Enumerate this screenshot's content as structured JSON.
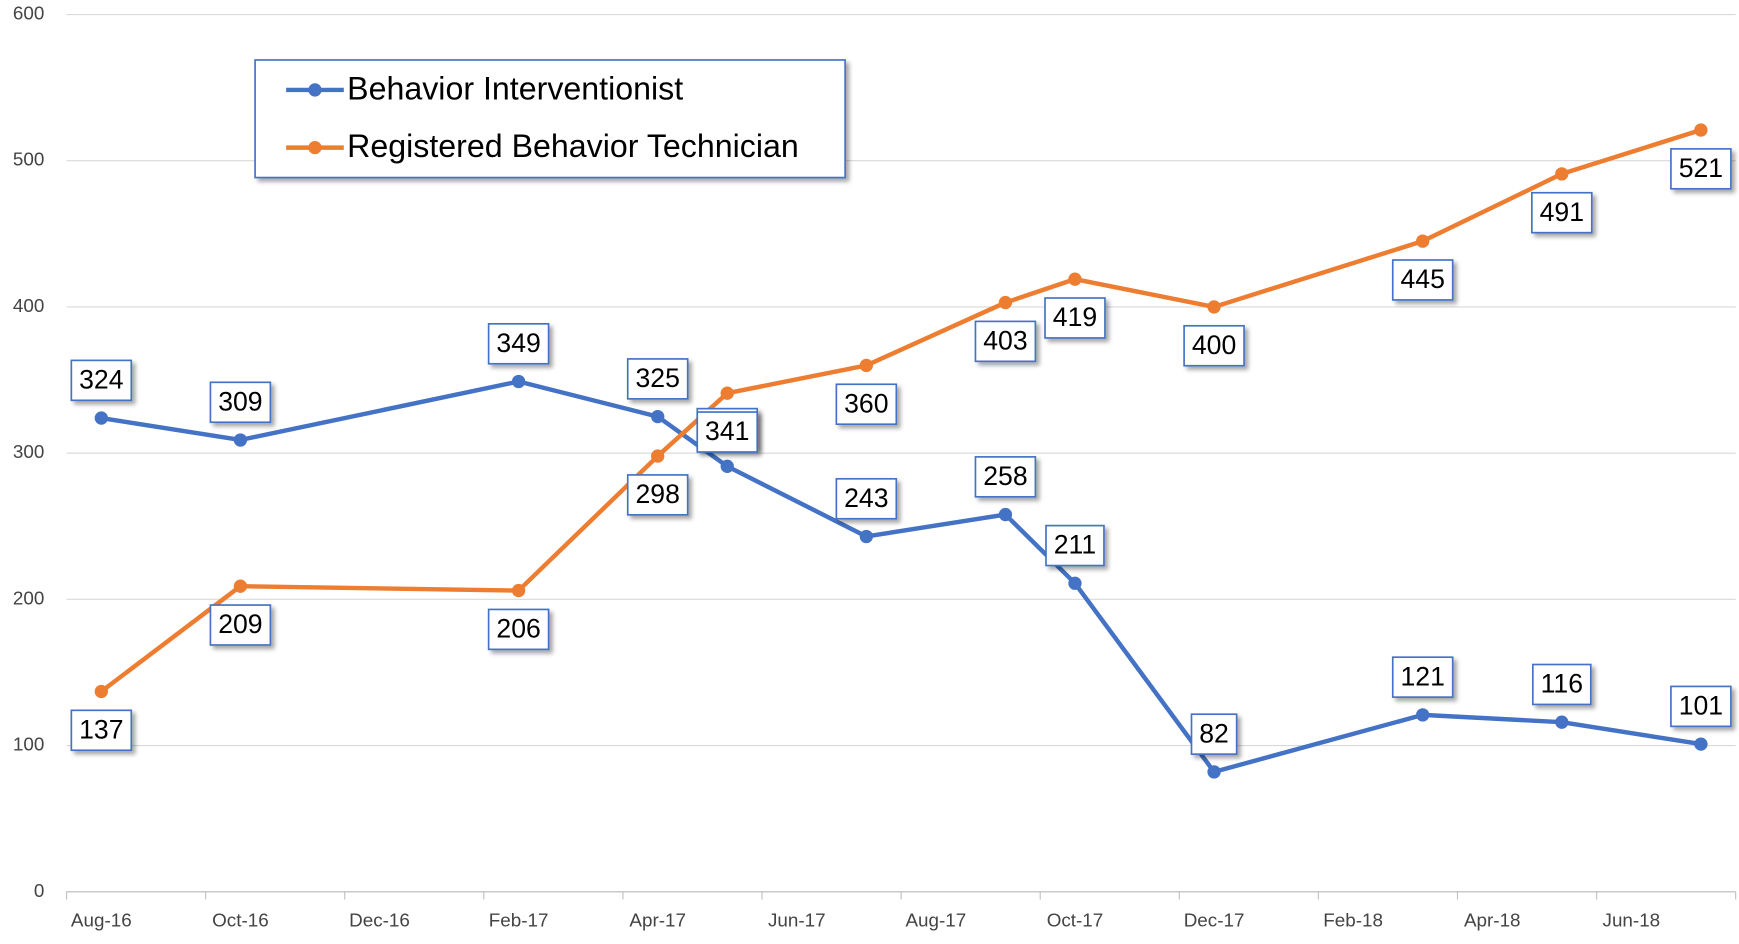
{
  "chart_data": {
    "type": "line",
    "x": [
      "Aug-16",
      "Oct-16",
      "Feb-17",
      "Apr-17",
      "May-17",
      "Jul-17",
      "Sep-17",
      "Oct-17",
      "Dec-17",
      "Mar-18",
      "May-18",
      "Jul-18"
    ],
    "series": [
      {
        "name": "Behavior Interventionist",
        "color": "#4472c4",
        "values": [
          324,
          309,
          349,
          325,
          291,
          243,
          258,
          211,
          82,
          121,
          116,
          101
        ]
      },
      {
        "name": "Registered Behavior Technician",
        "color": "#ed7d31",
        "values": [
          137,
          209,
          206,
          298,
          341,
          360,
          403,
          419,
          400,
          445,
          491,
          521
        ]
      }
    ],
    "xlim": [
      "Aug-16",
      "Aug-18"
    ],
    "xticks": [
      "Aug-16",
      "Oct-16",
      "Dec-16",
      "Feb-17",
      "Apr-17",
      "Jun-17",
      "Aug-17",
      "Oct-17",
      "Dec-17",
      "Feb-18",
      "Apr-18",
      "Jun-18"
    ],
    "ylim": [
      0,
      600
    ],
    "yticks": [
      0,
      100,
      200,
      300,
      400,
      500,
      600
    ],
    "grid": true,
    "legend": "upper left"
  }
}
